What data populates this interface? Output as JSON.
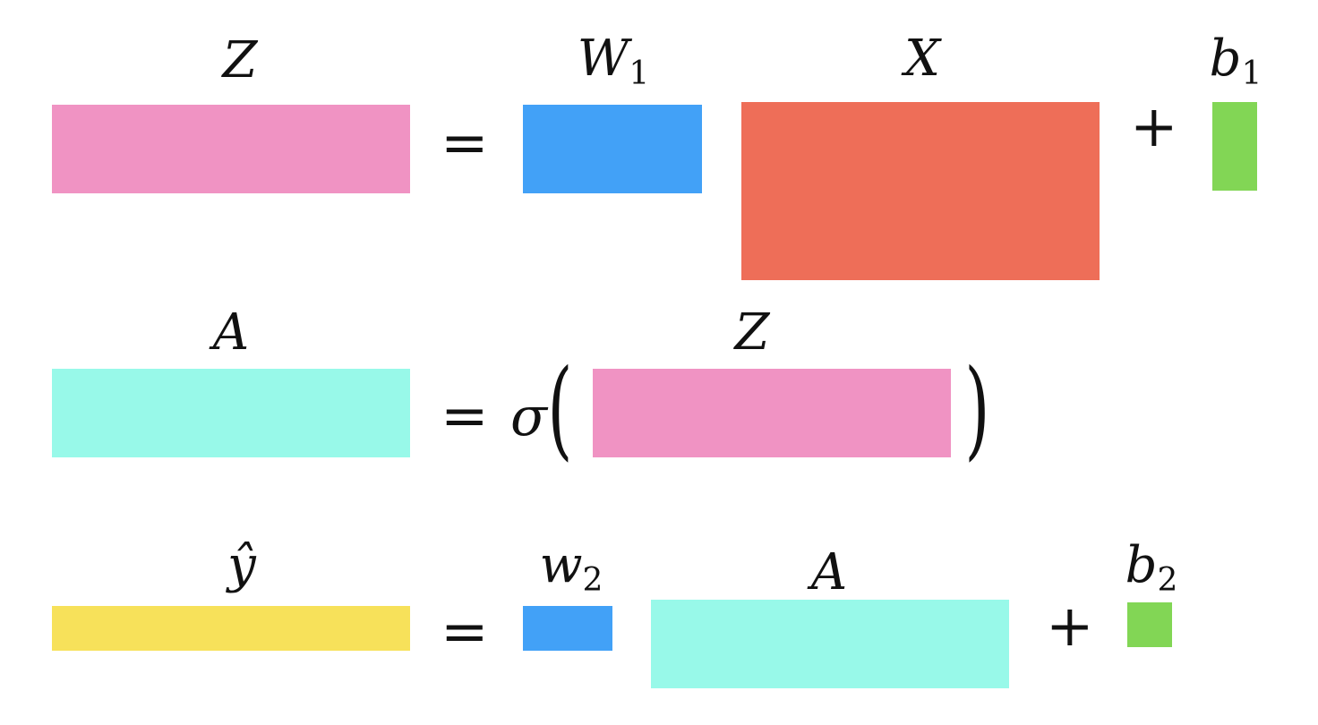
{
  "colors": {
    "pink": "#F093C3",
    "blue": "#42A1F7",
    "red": "#EE6E58",
    "green": "#82D655",
    "cyan": "#98F9E9",
    "yellow": "#F7E15A"
  },
  "row1": {
    "lhs": {
      "name": "Z"
    },
    "equals": "=",
    "w": {
      "name": "W",
      "sub": "1"
    },
    "x": {
      "name": "X"
    },
    "plus": "+",
    "b": {
      "name": "b",
      "sub": "1"
    }
  },
  "row2": {
    "lhs": {
      "name": "A"
    },
    "equals": "=",
    "func": "σ",
    "open_paren": "(",
    "arg": {
      "name": "Z"
    },
    "close_paren": ")"
  },
  "row3": {
    "lhs": {
      "name": "ŷ"
    },
    "equals": "=",
    "w": {
      "name": "w",
      "sub": "2"
    },
    "a": {
      "name": "A"
    },
    "plus": "+",
    "b": {
      "name": "b",
      "sub": "2"
    }
  }
}
